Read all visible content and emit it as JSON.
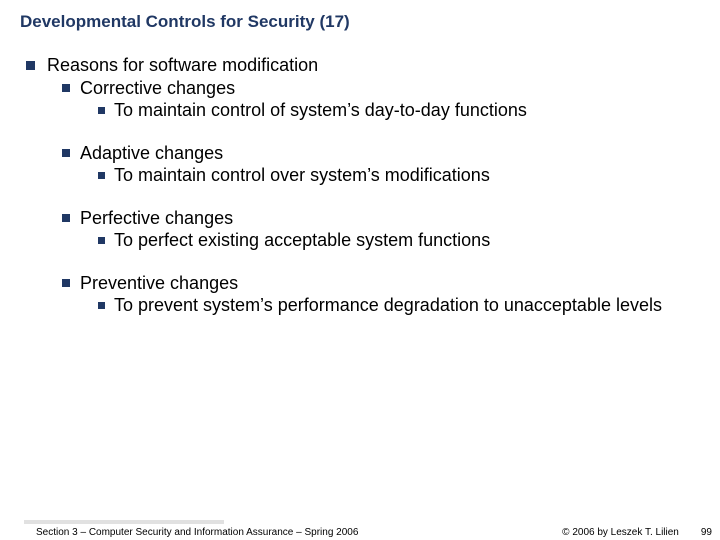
{
  "colors": {
    "title": "#203864",
    "bullet": "#203864",
    "text": "#000000",
    "background": "#ffffff"
  },
  "title": "Developmental Controls for Security (17)",
  "content": {
    "l1": "Reasons for software modification",
    "groups": [
      {
        "l2": "Corrective changes",
        "l3": "To maintain control of system’s day-to-day functions"
      },
      {
        "l2": "Adaptive changes",
        "l3": "To maintain control over system’s modifications"
      },
      {
        "l2": "Perfective changes",
        "l3": "To perfect existing acceptable system functions"
      },
      {
        "l2": "Preventive changes",
        "l3": "To prevent system’s performance degradation to unacceptable levels"
      }
    ]
  },
  "footer": {
    "left": "Section 3 – Computer Security and Information Assurance – Spring 2006",
    "right": "© 2006 by Leszek T. Lilien",
    "page": "99"
  }
}
